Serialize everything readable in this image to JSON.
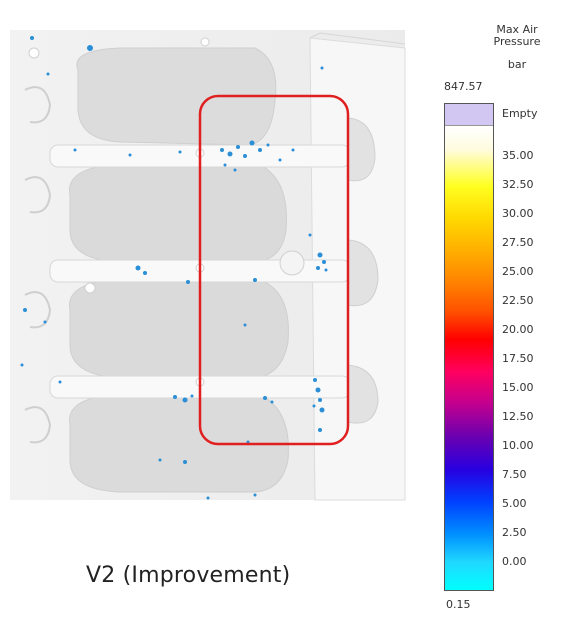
{
  "caption": "V2 (Improvement)",
  "legend": {
    "title_line1": "Max Air",
    "title_line2": "Pressure",
    "unit": "bar",
    "max_label": "847.57",
    "min_label": "0.15",
    "empty_label": "Empty",
    "ticks": [
      "35.00",
      "32.50",
      "30.00",
      "27.50",
      "25.00",
      "22.50",
      "20.00",
      "17.50",
      "15.00",
      "12.50",
      "10.00",
      "7.50",
      "5.00",
      "2.50",
      "0.00"
    ],
    "empty_color": "#d2c7f2",
    "highlight_color": "#e02020"
  }
}
